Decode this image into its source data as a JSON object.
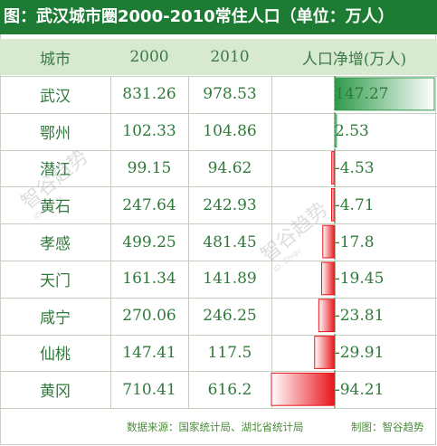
{
  "title": "图：武汉城市圈2000-2010常住人口（单位：万人）",
  "columns": [
    "城市",
    "2000",
    "2010",
    "人口净增(万人)"
  ],
  "chart_data": {
    "type": "table",
    "rows": [
      {
        "city": "武汉",
        "y2000": "831.26",
        "y2010": "978.53",
        "change_label": "147.27",
        "change": 147.27
      },
      {
        "city": "鄂州",
        "y2000": "102.33",
        "y2010": "104.86",
        "change_label": "2.53",
        "change": 2.53
      },
      {
        "city": "潜江",
        "y2000": "99.15",
        "y2010": "94.62",
        "change_label": "-4.53",
        "change": -4.53
      },
      {
        "city": "黄石",
        "y2000": "247.64",
        "y2010": "242.93",
        "change_label": "-4.71",
        "change": -4.71
      },
      {
        "city": "孝感",
        "y2000": "499.25",
        "y2010": "481.45",
        "change_label": "-17.8",
        "change": -17.8
      },
      {
        "city": "天门",
        "y2000": "161.34",
        "y2010": "141.89",
        "change_label": "-19.45",
        "change": -19.45
      },
      {
        "city": "咸宁",
        "y2000": "270.06",
        "y2010": "246.25",
        "change_label": "-23.81",
        "change": -23.81
      },
      {
        "city": "仙桃",
        "y2000": "147.41",
        "y2010": "117.5",
        "change_label": "-29.91",
        "change": -29.91
      },
      {
        "city": "黄冈",
        "y2000": "710.41",
        "y2010": "616.2",
        "change_label": "-94.21",
        "change": -94.21
      }
    ],
    "colors": {
      "positive": "#2e9a4a",
      "negative": "#e8141a"
    }
  },
  "footer": {
    "source": "数据来源：国家统计局、湖北省统计局",
    "credit": "制图：智谷趋势"
  },
  "watermark": {
    "text": "智谷趋势",
    "sub": "ID: Zhigu"
  }
}
